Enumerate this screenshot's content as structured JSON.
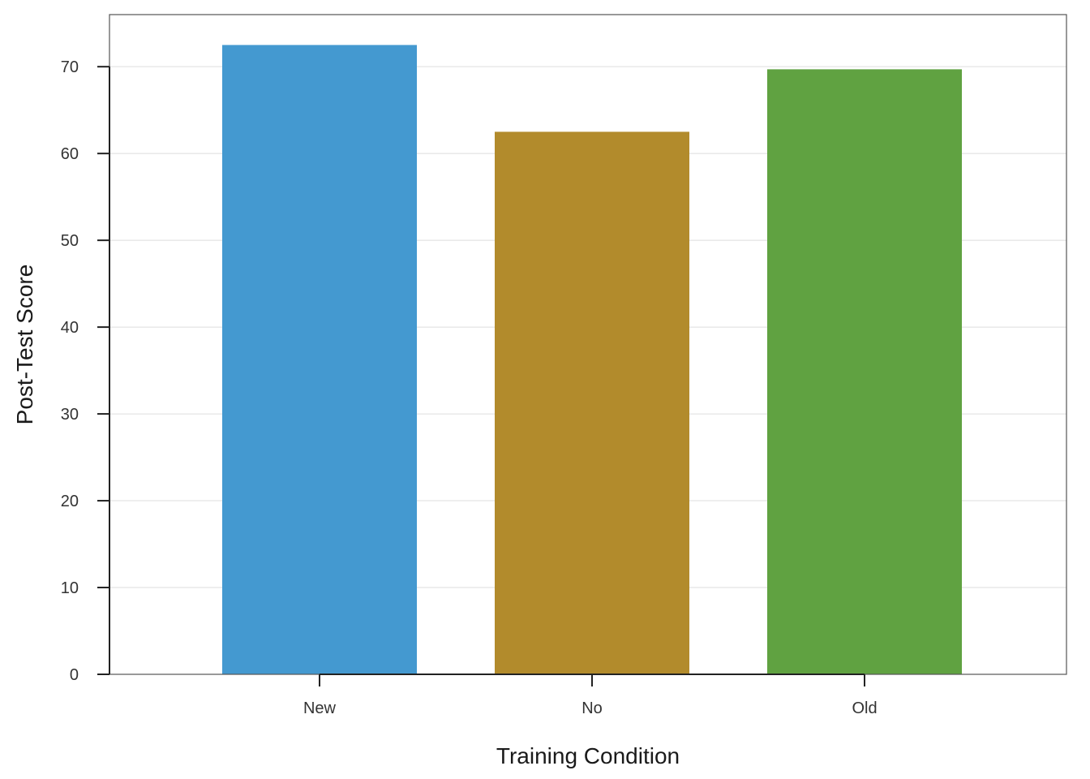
{
  "chart_data": {
    "type": "bar",
    "title": "",
    "xlabel": "Training Condition",
    "ylabel": "Post-Test Score",
    "categories": [
      "New",
      "No",
      "Old"
    ],
    "values": [
      72.5,
      62.5,
      69.7
    ],
    "colors": [
      "#4499d0",
      "#b28b2c",
      "#60a241"
    ],
    "ylim": [
      0,
      76
    ],
    "yticks": [
      0,
      10,
      20,
      30,
      40,
      50,
      60,
      70
    ],
    "grid": true,
    "grid_axis": "y",
    "legend": "none"
  }
}
